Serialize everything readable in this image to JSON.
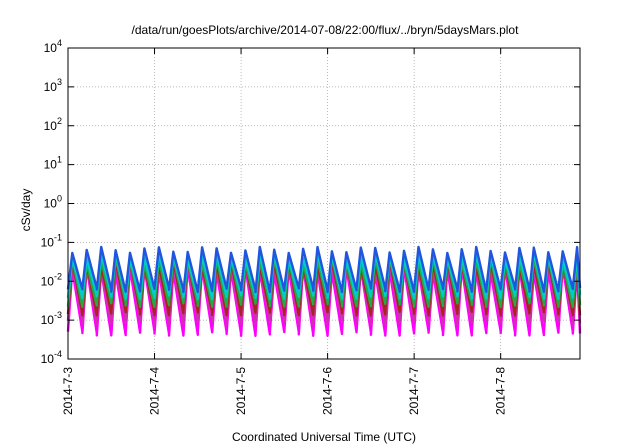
{
  "chart_data": {
    "type": "line",
    "title": "/data/run/goesPlots/archive/2014-07-08/22:00/flux/../bryn/5daysMars.plot",
    "xlabel": "Coordinated Universal Time (UTC)",
    "ylabel": "cSv/day",
    "y_scale": "log",
    "ylim": [
      0.0001,
      10000
    ],
    "y_ticks": [
      {
        "value": 0.0001,
        "base": "10",
        "exp": "-4"
      },
      {
        "value": 0.001,
        "base": "10",
        "exp": "-3"
      },
      {
        "value": 0.01,
        "base": "10",
        "exp": "-2"
      },
      {
        "value": 0.1,
        "base": "10",
        "exp": "-1"
      },
      {
        "value": 1,
        "base": "10",
        "exp": "0"
      },
      {
        "value": 10,
        "base": "10",
        "exp": "1"
      },
      {
        "value": 100,
        "base": "10",
        "exp": "2"
      },
      {
        "value": 1000,
        "base": "10",
        "exp": "3"
      },
      {
        "value": 10000,
        "base": "10",
        "exp": "4"
      }
    ],
    "xlim": [
      "2014-07-03 00:00",
      "2014-07-08 22:00"
    ],
    "x_ticks": [
      {
        "value": "2014-07-03",
        "label": "2014-7-3"
      },
      {
        "value": "2014-07-04",
        "label": "2014-7-4"
      },
      {
        "value": "2014-07-05",
        "label": "2014-7-5"
      },
      {
        "value": "2014-07-06",
        "label": "2014-7-6"
      },
      {
        "value": "2014-07-07",
        "label": "2014-7-7"
      },
      {
        "value": "2014-07-08",
        "label": "2014-7-8"
      }
    ],
    "grid": true,
    "period_hours": 4,
    "series": [
      {
        "color": "#ff00ff",
        "peak": 0.02,
        "trough": 0.00045
      },
      {
        "color": "#cc33aa",
        "peak": 0.025,
        "trough": 0.0009
      },
      {
        "color": "#aa2222",
        "peak": 0.03,
        "trough": 0.0015
      },
      {
        "color": "#22aa44",
        "peak": 0.035,
        "trough": 0.0025
      },
      {
        "color": "#00cccc",
        "peak": 0.045,
        "trough": 0.004
      },
      {
        "color": "#2255dd",
        "peak": 0.065,
        "trough": 0.006
      }
    ]
  }
}
